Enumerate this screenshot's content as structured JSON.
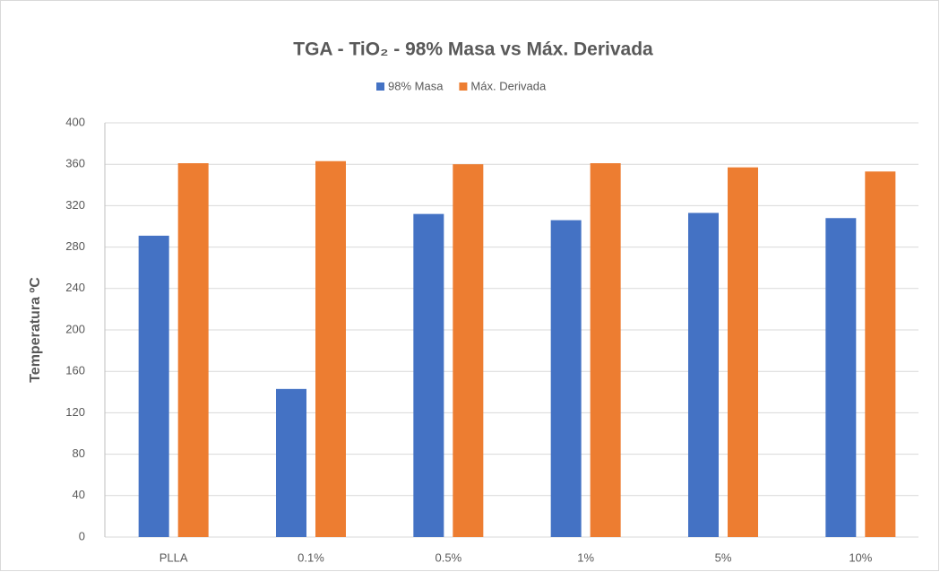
{
  "chart_data": {
    "type": "bar",
    "title": "TGA - TiO₂ - 98% Masa vs Máx. Derivada",
    "y_label": "Temperatura ºC",
    "categories": [
      "PLLA",
      "0.1%",
      "0.5%",
      "1%",
      "5%",
      "10%"
    ],
    "series": [
      {
        "name": "98% Masa",
        "color": "#4472c4",
        "values": [
          291,
          143,
          312,
          306,
          313,
          308
        ]
      },
      {
        "name": "Máx. Derivada",
        "color": "#ed7d31",
        "values": [
          361,
          363,
          360,
          361,
          357,
          353
        ]
      }
    ],
    "ylim": [
      0,
      400
    ],
    "yticks": [
      0,
      40,
      80,
      120,
      160,
      200,
      240,
      280,
      320,
      360,
      400
    ],
    "grid": true,
    "legend": "top"
  }
}
